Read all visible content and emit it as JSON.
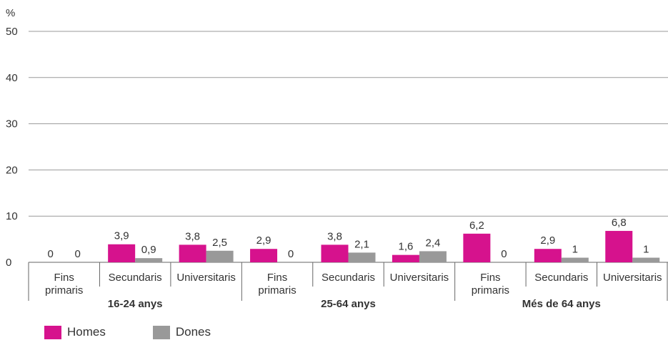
{
  "chart_data": {
    "type": "bar",
    "unit_label": "%",
    "ylim": [
      0,
      50
    ],
    "yticks": [
      0,
      10,
      20,
      30,
      40,
      50
    ],
    "grid": true,
    "groups": [
      {
        "label": "16-24 anys",
        "categories": [
          "Fins primaris",
          "Secundaris",
          "Universitaris"
        ]
      },
      {
        "label": "25-64 anys",
        "categories": [
          "Fins primaris",
          "Secundaris",
          "Universitaris"
        ]
      },
      {
        "label": "Més de 64 anys",
        "categories": [
          "Fins primaris",
          "Secundaris",
          "Universitaris"
        ]
      }
    ],
    "category_lines": {
      "Fins primaris": [
        "Fins",
        "primaris"
      ],
      "Secundaris": [
        "Secundaris"
      ],
      "Universitaris": [
        "Universitaris"
      ]
    },
    "series": [
      {
        "name": "Homes",
        "color": "#d6128d",
        "values": [
          0,
          3.9,
          3.8,
          2.9,
          3.8,
          1.6,
          6.2,
          2.9,
          6.8
        ]
      },
      {
        "name": "Dones",
        "color": "#999999",
        "values": [
          0,
          0.9,
          2.5,
          0,
          2.1,
          2.4,
          0,
          1,
          1
        ]
      }
    ],
    "legend_position": "bottom-left"
  }
}
